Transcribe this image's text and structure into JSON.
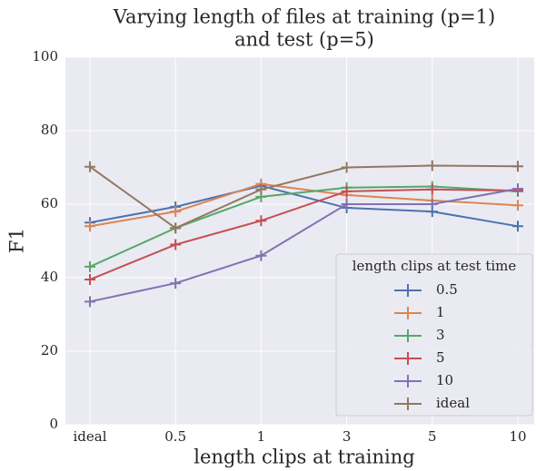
{
  "chart_data": {
    "type": "line",
    "title": [
      "Varying length of files at training (p=1)",
      "and test (p=5)"
    ],
    "x_label": "length clips at training",
    "y_label": "F1",
    "categories": [
      "ideal",
      "0.5",
      "1",
      "3",
      "5",
      "10"
    ],
    "series": [
      {
        "name": "0.5",
        "color": "#4c72b0",
        "values": [
          55,
          59.3,
          65,
          59,
          58,
          54
        ]
      },
      {
        "name": "1",
        "color": "#dd8452",
        "values": [
          54,
          58,
          65.5,
          62.5,
          61,
          59.7
        ]
      },
      {
        "name": "3",
        "color": "#55a868",
        "values": [
          43,
          53.5,
          62,
          64.5,
          64.8,
          63.5
        ]
      },
      {
        "name": "5",
        "color": "#c44e52",
        "values": [
          39.5,
          49,
          55.5,
          63.5,
          64,
          63.7
        ]
      },
      {
        "name": "10",
        "color": "#8172b3",
        "values": [
          33.5,
          38.5,
          46,
          60,
          60,
          64.2
        ]
      },
      {
        "name": "ideal",
        "color": "#937860",
        "values": [
          70.2,
          53.5,
          64,
          70,
          70.5,
          70.3
        ]
      }
    ],
    "legend_title": "length clips at test time",
    "legend": "lower right",
    "ylim": [
      0,
      100
    ],
    "yticks": [
      0,
      20,
      40,
      60,
      80,
      100
    ],
    "grid": true
  }
}
